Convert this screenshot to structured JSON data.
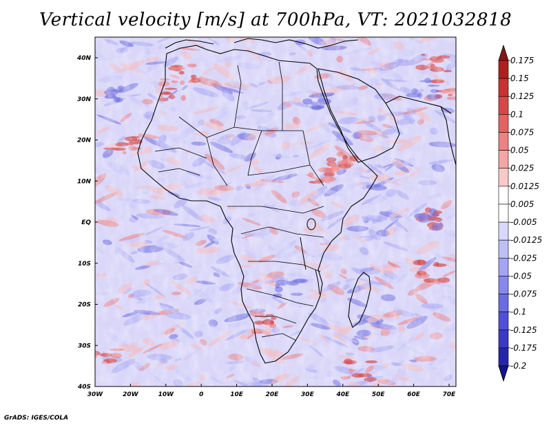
{
  "title": "Vertical velocity [m/s] at 700hPa, VT: 2021032818",
  "footer": "GrADS: IGES/COLA",
  "lat_labels": [
    "40N",
    "30N",
    "20N",
    "10N",
    "EQ",
    "10S",
    "20S",
    "30S",
    "40S"
  ],
  "lon_labels": [
    "30W",
    "20W",
    "10W",
    "0",
    "10E",
    "20E",
    "30E",
    "40E",
    "50E",
    "60E",
    "70E"
  ],
  "colorbar": {
    "levels": [
      "0.175",
      "0.15",
      "0.125",
      "0.1",
      "0.075",
      "0.05",
      "0.025",
      "0.0125",
      "0.005",
      "-0.005",
      "-0.0125",
      "-0.025",
      "-0.05",
      "-0.075",
      "-0.1",
      "-0.125",
      "-0.175",
      "-0.2"
    ],
    "colors": [
      "#8b1414",
      "#ae2020",
      "#c83232",
      "#d64848",
      "#e06464",
      "#ec8282",
      "#f3a6a6",
      "#f9caca",
      "#ffffff",
      "#ffffff",
      "#d8d8fb",
      "#bebef8",
      "#a4a4f2",
      "#8888ea",
      "#6c6ce0",
      "#5050d4",
      "#3a3ac4",
      "#2626a8",
      "#14148a"
    ]
  },
  "palette": {
    "red_strong": "#d64848",
    "red_mid": "#ec8282",
    "red_light": "#f6bcbc",
    "blue_light": "#c8c8f8",
    "blue_mid": "#a8a8f2",
    "blue_strong": "#6c6ce0",
    "field_base": "#e4e0fa",
    "coast": "#000000"
  }
}
